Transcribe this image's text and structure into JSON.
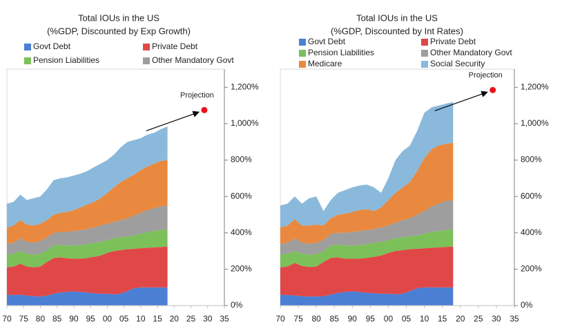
{
  "chart_data": [
    {
      "type": "stacked_area",
      "title": "Total IOUs in the US",
      "subtitle": "(%GDP, Discounted by Exp Growth)",
      "x": [
        1970,
        1972,
        1974,
        1976,
        1978,
        1980,
        1982,
        1984,
        1986,
        1988,
        1990,
        1992,
        1994,
        1996,
        1998,
        2000,
        2002,
        2004,
        2006,
        2008,
        2010,
        2012,
        2014,
        2016,
        2018
      ],
      "series": [
        {
          "name": "Govt Debt",
          "color": "#4a7fd4",
          "values": [
            60,
            58,
            60,
            55,
            52,
            50,
            55,
            65,
            72,
            75,
            78,
            75,
            72,
            68,
            65,
            65,
            62,
            65,
            80,
            95,
            100,
            100,
            100,
            100,
            100
          ]
        },
        {
          "name": "Private Debt",
          "color": "#e04848",
          "values": [
            150,
            157,
            170,
            160,
            158,
            165,
            185,
            197,
            193,
            185,
            180,
            183,
            190,
            200,
            210,
            225,
            238,
            240,
            230,
            217,
            215,
            218,
            220,
            222,
            225
          ]
        },
        {
          "name": "Pension Liabilities",
          "color": "#7cc05a",
          "values": [
            70,
            70,
            70,
            70,
            70,
            70,
            65,
            68,
            70,
            70,
            72,
            74,
            76,
            77,
            75,
            70,
            70,
            70,
            70,
            73,
            80,
            87,
            90,
            93,
            95
          ]
        },
        {
          "name": "Other Mandatory Govt",
          "color": "#9e9e9e",
          "values": [
            60,
            60,
            70,
            65,
            65,
            70,
            70,
            70,
            70,
            75,
            80,
            83,
            82,
            85,
            90,
            90,
            90,
            95,
            100,
            110,
            115,
            120,
            125,
            130,
            130
          ]
        },
        {
          "color": "#e8893f",
          "values": [
            90,
            95,
            100,
            95,
            95,
            95,
            95,
            100,
            105,
            110,
            115,
            125,
            135,
            140,
            150,
            170,
            190,
            210,
            220,
            225,
            235,
            240,
            245,
            250,
            250
          ]
        },
        {
          "color": "#8ab9dc",
          "values": [
            130,
            130,
            140,
            135,
            150,
            150,
            170,
            190,
            190,
            190,
            190,
            185,
            185,
            190,
            190,
            180,
            180,
            190,
            200,
            190,
            175,
            175,
            170,
            175,
            185
          ]
        }
      ],
      "xlim": [
        1970,
        2035
      ],
      "xticks": [
        {
          "value": 1970,
          "label": "70"
        },
        {
          "value": 1975,
          "label": "75"
        },
        {
          "value": 1980,
          "label": "80"
        },
        {
          "value": 1985,
          "label": "85"
        },
        {
          "value": 1990,
          "label": "90"
        },
        {
          "value": 1995,
          "label": "95"
        },
        {
          "value": 2000,
          "label": "00"
        },
        {
          "value": 2005,
          "label": "05"
        },
        {
          "value": 2010,
          "label": "10"
        },
        {
          "value": 2015,
          "label": "15"
        },
        {
          "value": 2020,
          "label": "20"
        },
        {
          "value": 2025,
          "label": "25"
        },
        {
          "value": 2030,
          "label": "30"
        },
        {
          "value": 2035,
          "label": "35"
        }
      ],
      "ylim": [
        0,
        1300
      ],
      "yticks": [
        {
          "value": 0,
          "label": "0%"
        },
        {
          "value": 200,
          "label": "200%"
        },
        {
          "value": 400,
          "label": "400%"
        },
        {
          "value": 600,
          "label": "600%"
        },
        {
          "value": 800,
          "label": "800%"
        },
        {
          "value": 1000,
          "label": "1,000%"
        },
        {
          "value": 1200,
          "label": "1,200%"
        }
      ],
      "annotation": "Projection",
      "projection": {
        "x": 2029,
        "y": 1075,
        "color": "#e8141c"
      }
    },
    {
      "type": "stacked_area",
      "title": "Total IOUs in the US",
      "subtitle": "(%GDP, Discounted by Int Rates)",
      "x": [
        1970,
        1972,
        1974,
        1976,
        1978,
        1980,
        1982,
        1984,
        1986,
        1988,
        1990,
        1992,
        1994,
        1996,
        1998,
        2000,
        2002,
        2004,
        2006,
        2008,
        2010,
        2012,
        2014,
        2016,
        2018
      ],
      "series": [
        {
          "name": "Govt Debt",
          "color": "#4a7fd4",
          "values": [
            60,
            58,
            55,
            52,
            50,
            50,
            52,
            60,
            70,
            75,
            78,
            75,
            70,
            68,
            65,
            65,
            62,
            65,
            80,
            95,
            100,
            100,
            100,
            100,
            100
          ]
        },
        {
          "name": "Private Debt",
          "color": "#e04848",
          "values": [
            150,
            157,
            180,
            166,
            162,
            165,
            188,
            202,
            195,
            183,
            180,
            183,
            192,
            200,
            210,
            225,
            238,
            240,
            230,
            217,
            215,
            218,
            220,
            222,
            225
          ]
        },
        {
          "name": "Pension Liabilities",
          "color": "#7cc05a",
          "values": [
            70,
            70,
            65,
            67,
            68,
            67,
            60,
            68,
            70,
            72,
            72,
            74,
            76,
            77,
            75,
            70,
            70,
            70,
            70,
            73,
            80,
            87,
            90,
            93,
            95
          ]
        },
        {
          "name": "Other Mandatory Govt",
          "color": "#9e9e9e",
          "values": [
            60,
            60,
            70,
            60,
            60,
            63,
            60,
            65,
            65,
            70,
            75,
            78,
            77,
            75,
            80,
            80,
            85,
            95,
            100,
            115,
            125,
            140,
            150,
            160,
            160
          ]
        },
        {
          "name": "Medicare",
          "color": "#e8893f",
          "values": [
            90,
            95,
            105,
            95,
            100,
            100,
            80,
            85,
            100,
            105,
            110,
            115,
            115,
            100,
            110,
            140,
            165,
            180,
            200,
            240,
            290,
            315,
            320,
            315,
            315
          ]
        },
        {
          "name": "Social Security",
          "color": "#8ab9dc",
          "values": [
            120,
            120,
            125,
            120,
            150,
            155,
            80,
            100,
            120,
            130,
            135,
            135,
            135,
            130,
            80,
            120,
            180,
            200,
            200,
            220,
            250,
            230,
            220,
            220,
            225
          ]
        }
      ],
      "xlim": [
        1970,
        2035
      ],
      "xticks": [
        {
          "value": 1970,
          "label": "70"
        },
        {
          "value": 1975,
          "label": "75"
        },
        {
          "value": 1980,
          "label": "80"
        },
        {
          "value": 1985,
          "label": "85"
        },
        {
          "value": 1990,
          "label": "90"
        },
        {
          "value": 1995,
          "label": "95"
        },
        {
          "value": 2000,
          "label": "00"
        },
        {
          "value": 2005,
          "label": "05"
        },
        {
          "value": 2010,
          "label": "10"
        },
        {
          "value": 2015,
          "label": "15"
        },
        {
          "value": 2020,
          "label": "20"
        },
        {
          "value": 2025,
          "label": "25"
        },
        {
          "value": 2030,
          "label": "30"
        },
        {
          "value": 2035,
          "label": "35"
        }
      ],
      "ylim": [
        0,
        1300
      ],
      "yticks": [
        {
          "value": 0,
          "label": "0%"
        },
        {
          "value": 200,
          "label": "200%"
        },
        {
          "value": 400,
          "label": "400%"
        },
        {
          "value": 600,
          "label": "600%"
        },
        {
          "value": 800,
          "label": "800%"
        },
        {
          "value": 1000,
          "label": "1,000%"
        },
        {
          "value": 1200,
          "label": "1,200%"
        }
      ],
      "annotation": "Projection",
      "projection": {
        "x": 2029,
        "y": 1185,
        "color": "#e8141c"
      }
    }
  ]
}
